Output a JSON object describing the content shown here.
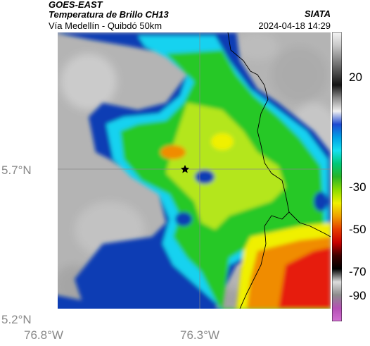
{
  "header": {
    "title1": "GOES-EAST",
    "title2": "Temperatura de Brillo CH13",
    "subtitle": "Vía Medellín - Quibdó 50km",
    "brand": "SIATA",
    "datetime": "2024-04-18 14:29"
  },
  "axes": {
    "lat_labels": [
      "5.7°N",
      "5.2°N"
    ],
    "lon_labels": [
      "76.8°W",
      "76.3°W"
    ]
  },
  "colorbar": {
    "ticks": [
      "20",
      "-30",
      "-50",
      "-70",
      "-90"
    ],
    "gradient": [
      "#f4f4f4",
      "#c8c8c8",
      "#8c8c8c",
      "#505050",
      "#141414",
      "#8c8c8c",
      "#f0f0f0",
      "#1e4bd2",
      "#00a0e6",
      "#14e0f0",
      "#00c878",
      "#28b428",
      "#8cdc00",
      "#f0f000",
      "#f0a000",
      "#e63c00",
      "#c80000",
      "#3c0000",
      "#000000",
      "#dcdcdc",
      "#8c8c8c",
      "#b450b4",
      "#d270d2"
    ]
  },
  "map": {
    "marker": "star-marker",
    "palette": {
      "cold_top": "#e61e0a",
      "deep": "#f08c00",
      "yellow": "#f0f000",
      "green": "#28c828",
      "cyan": "#14d2f0",
      "blue": "#0a3cb4",
      "cloud_free": "#b4b4b4"
    }
  }
}
